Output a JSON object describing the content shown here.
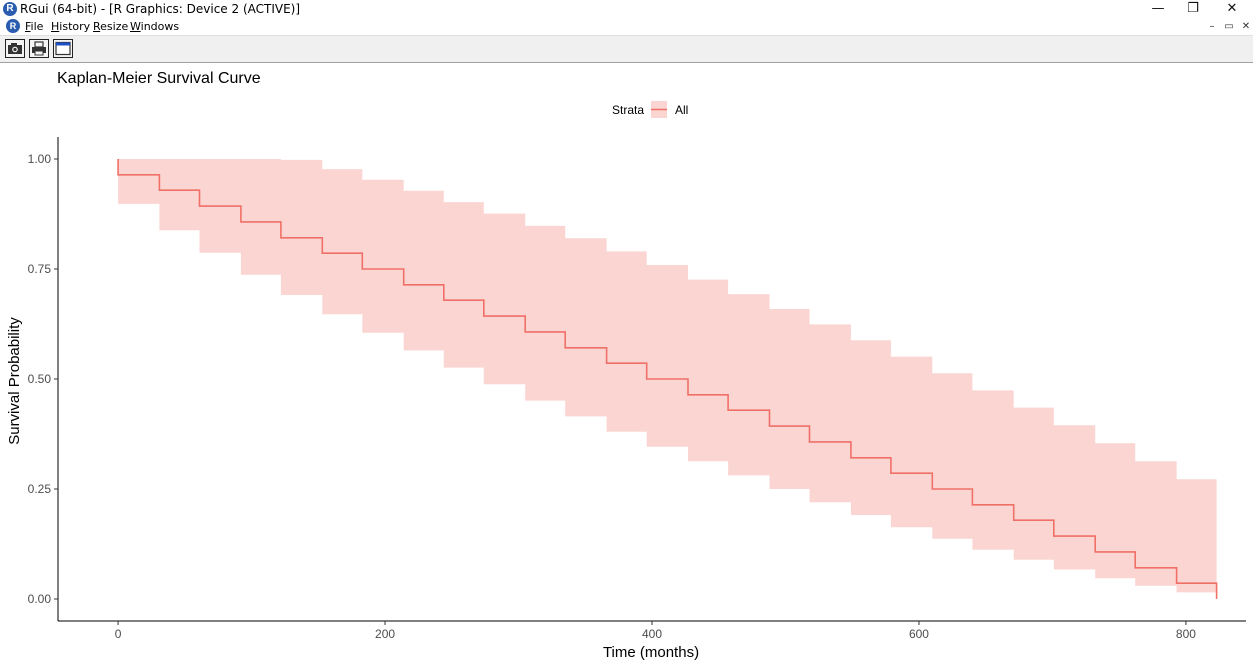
{
  "window": {
    "title": "RGui (64-bit) - [R Graphics: Device 2 (ACTIVE)]",
    "app_icon_letter": "R",
    "controls": {
      "minimize": "—",
      "restore": "❐",
      "close": "✕"
    }
  },
  "menu": {
    "items": [
      {
        "accel": "F",
        "rest": "ile"
      },
      {
        "accel": "H",
        "rest": "istory"
      },
      {
        "accel": "R",
        "rest": "esize"
      },
      {
        "accel": "W",
        "rest": "indows"
      }
    ],
    "mdi_controls": {
      "minimize": "–",
      "restore": "▭",
      "close": "✕"
    }
  },
  "toolbar": {
    "buttons": [
      "copy-to-clipboard-icon",
      "print-icon",
      "window-icon"
    ]
  },
  "chart_data": {
    "type": "line",
    "title": "Kaplan-Meier Survival Curve",
    "xlabel": "Time (months)",
    "ylabel": "Survival Probability",
    "xlim": [
      -45,
      845
    ],
    "ylim": [
      -0.05,
      1.05
    ],
    "x_ticks": [
      0,
      200,
      400,
      600,
      800
    ],
    "y_ticks": [
      0.0,
      0.25,
      0.5,
      0.75,
      1.0
    ],
    "x_tick_labels": [
      "0",
      "200",
      "400",
      "600",
      "800"
    ],
    "y_tick_labels": [
      "0.00",
      "0.25",
      "0.50",
      "0.75",
      "1.00"
    ],
    "grid": false,
    "legend": {
      "position": "top-center",
      "title": "Strata",
      "entries": [
        "All"
      ]
    },
    "colors": {
      "line": "#f07068",
      "band": "#fbd5d2"
    },
    "series": [
      {
        "name": "All",
        "step": true,
        "x": [
          0,
          0,
          31,
          61,
          92,
          122,
          153,
          183,
          214,
          244,
          274,
          305,
          335,
          366,
          396,
          427,
          457,
          488,
          518,
          549,
          579,
          610,
          640,
          671,
          701,
          732,
          762,
          793,
          823
        ],
        "y": [
          1.0,
          0.964,
          0.929,
          0.893,
          0.857,
          0.821,
          0.786,
          0.75,
          0.714,
          0.679,
          0.643,
          0.607,
          0.571,
          0.536,
          0.5,
          0.464,
          0.429,
          0.393,
          0.357,
          0.321,
          0.286,
          0.25,
          0.214,
          0.179,
          0.143,
          0.107,
          0.071,
          0.036,
          0.0
        ],
        "upper": [
          1.0,
          1.0,
          1.0,
          1.0,
          1.0,
          0.998,
          0.977,
          0.953,
          0.928,
          0.902,
          0.876,
          0.848,
          0.82,
          0.79,
          0.759,
          0.726,
          0.693,
          0.659,
          0.624,
          0.588,
          0.551,
          0.513,
          0.474,
          0.435,
          0.395,
          0.354,
          0.313,
          0.272,
          0.247
        ],
        "lower": [
          1.0,
          0.898,
          0.838,
          0.787,
          0.737,
          0.691,
          0.647,
          0.605,
          0.565,
          0.526,
          0.488,
          0.451,
          0.415,
          0.38,
          0.346,
          0.313,
          0.281,
          0.25,
          0.22,
          0.191,
          0.163,
          0.137,
          0.112,
          0.089,
          0.067,
          0.047,
          0.03,
          0.015,
          0.0
        ]
      }
    ]
  }
}
